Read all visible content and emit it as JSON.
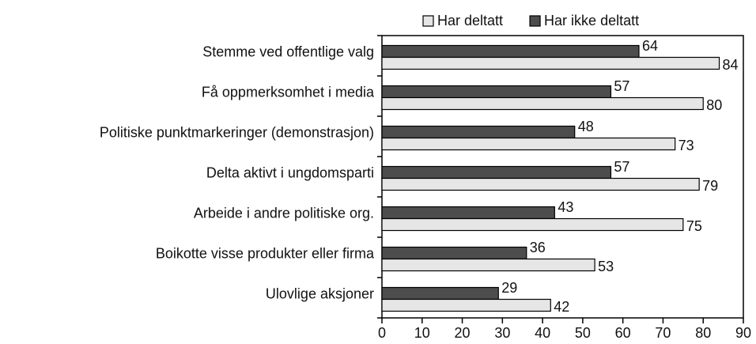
{
  "chart_data": {
    "type": "hbar",
    "categories": [
      "Stemme ved offentlige valg",
      "Få oppmerksomhet i media",
      "Politiske punktmarkeringer (demonstrasjon)",
      "Delta aktivt i ungdomsparti",
      "Arbeide i andre politiske org.",
      "Boikotte visse produkter eller firma",
      "Ulovlige aksjoner"
    ],
    "series": [
      {
        "name": "Har deltatt",
        "color": "#e6e6e6",
        "values": [
          84,
          80,
          73,
          79,
          75,
          53,
          42
        ]
      },
      {
        "name": "Har ikke deltatt",
        "color": "#4d4d4d",
        "values": [
          64,
          57,
          48,
          57,
          43,
          36,
          29
        ]
      }
    ],
    "xlim": [
      0,
      90
    ],
    "xticks": [
      0,
      10,
      20,
      30,
      40,
      50,
      60,
      70,
      80,
      90
    ],
    "legend": "top",
    "grid": false
  }
}
